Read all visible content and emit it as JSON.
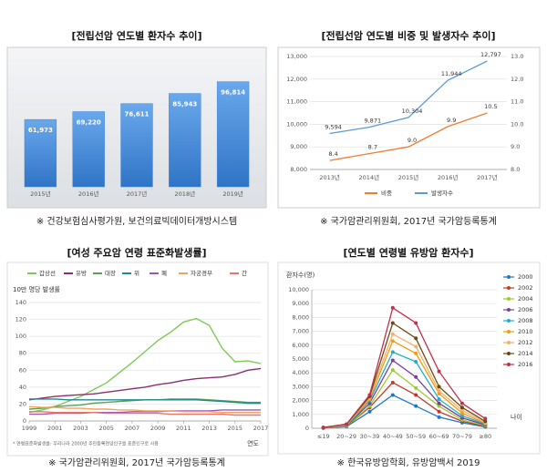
{
  "chart_data": [
    {
      "type": "bar",
      "title": "[전립선암 연도별 환자수 추이]",
      "categories": [
        "2015년",
        "2016년",
        "2017년",
        "2018년",
        "2019년"
      ],
      "values": [
        61973,
        69220,
        76611,
        85943,
        96814
      ],
      "value_labels": [
        "61,973",
        "69,220",
        "76,611",
        "85,943",
        "96,814"
      ],
      "color": "#3d85d8",
      "ylim": [
        0,
        120000
      ],
      "source": "※ 건강보험심사평가원, 보건의료빅데이터개방시스템"
    },
    {
      "type": "line",
      "title": "[전립선암 연도별 비중 및 발생자수 추이]",
      "categories": [
        "2013년",
        "2014년",
        "2015년",
        "2016년",
        "2017년"
      ],
      "series": [
        {
          "name": "비중",
          "color": "#ed7d31",
          "axis": "y2",
          "values": [
            8.4,
            8.7,
            9.0,
            9.9,
            10.5
          ],
          "value_labels": [
            "8.4",
            "8.7",
            "9.0",
            "9.9",
            "10.5"
          ]
        },
        {
          "name": "발생자수",
          "color": "#5b9bd5",
          "values": [
            9594,
            9871,
            10304,
            11944,
            12797
          ],
          "value_labels": [
            "9,594",
            "9,871",
            "10,304",
            "11,944",
            "12,797"
          ]
        }
      ],
      "ylim": [
        8000,
        13000
      ],
      "yticks": [
        {
          "value": 8000,
          "label": "8,000"
        },
        {
          "value": 9000,
          "label": "9,000"
        },
        {
          "value": 10000,
          "label": "10,000"
        },
        {
          "value": 11000,
          "label": "11,000"
        },
        {
          "value": 12000,
          "label": "12,000"
        },
        {
          "value": 13000,
          "label": "13,000"
        }
      ],
      "y2lim": [
        8,
        13
      ],
      "y2ticks": [
        {
          "value": 8,
          "label": "8.0"
        },
        {
          "value": 9,
          "label": "9.0"
        },
        {
          "value": 10,
          "label": "10.0"
        },
        {
          "value": 11,
          "label": "11.0"
        },
        {
          "value": 12,
          "label": "12.0"
        },
        {
          "value": 13,
          "label": "13.0"
        }
      ],
      "grid": true,
      "legend": "bottom",
      "source": "※ 국가암관리위원회, 2017년 국가암등록통계"
    },
    {
      "type": "line",
      "title": "[여성 주요암 연령 표준화발생률]",
      "y_label": "10만 명당 발생률",
      "x_label": "연도",
      "x": [
        1999,
        2000,
        2001,
        2002,
        2003,
        2004,
        2005,
        2006,
        2007,
        2008,
        2009,
        2010,
        2011,
        2012,
        2013,
        2014,
        2015,
        2016,
        2017
      ],
      "series": [
        {
          "name": "갑상선",
          "color": "#7fc95a",
          "values": [
            10,
            13,
            17,
            23,
            29,
            37,
            45,
            57,
            69,
            82,
            95,
            105,
            117,
            121,
            113,
            86,
            70,
            71,
            68
          ]
        },
        {
          "name": "유방",
          "color": "#8b2f6e",
          "values": [
            25,
            27,
            29,
            30,
            31,
            32,
            34,
            36,
            38,
            40,
            43,
            45,
            48,
            50,
            51,
            52,
            55,
            60,
            62
          ]
        },
        {
          "name": "대장",
          "color": "#5aa05a",
          "values": [
            14,
            15,
            17,
            18,
            19,
            21,
            22,
            23,
            24,
            25,
            25,
            26,
            26,
            26,
            25,
            24,
            23,
            22,
            22
          ]
        },
        {
          "name": "위",
          "color": "#1f8a8f",
          "values": [
            26,
            26,
            26,
            25,
            25,
            25,
            25,
            25,
            25,
            25,
            25,
            25,
            25,
            25,
            24,
            23,
            22,
            21,
            21
          ]
        },
        {
          "name": "폐",
          "color": "#9b59b6",
          "values": [
            8,
            8,
            9,
            9,
            9,
            10,
            10,
            10,
            11,
            11,
            11,
            12,
            12,
            12,
            12,
            13,
            13,
            13,
            13
          ]
        },
        {
          "name": "자궁경부",
          "color": "#f5a25d",
          "values": [
            17,
            16,
            16,
            15,
            15,
            14,
            14,
            13,
            13,
            12,
            12,
            12,
            11,
            11,
            11,
            10,
            10,
            10,
            10
          ]
        },
        {
          "name": "간",
          "color": "#e8746a",
          "values": [
            11,
            11,
            10,
            10,
            10,
            10,
            9,
            9,
            9,
            9,
            9,
            8,
            8,
            8,
            8,
            8,
            7,
            7,
            7
          ]
        }
      ],
      "xlim": [
        1999,
        2017
      ],
      "xticks": [
        1999,
        2001,
        2003,
        2005,
        2007,
        2009,
        2011,
        2013,
        2015,
        2017
      ],
      "ylim": [
        0,
        140
      ],
      "yticks": [
        0,
        20,
        40,
        60,
        80,
        100,
        120,
        140
      ],
      "grid": true,
      "legend": "top",
      "footnote": "* 연령표준화발생률: 우리나라 2000년 주민등록연앙인구를 표준인구로 사용",
      "source": "※ 국가암관리위원회, 2017년 국가암등록통계"
    },
    {
      "type": "line",
      "title": "[연도별 연령별 유방암 환자수]",
      "y_label": "환자수(명)",
      "x_label": "나이",
      "categories": [
        "≤19",
        "20~29",
        "30~39",
        "40~49",
        "50~59",
        "60~69",
        "70~79",
        "≥80"
      ],
      "series": [
        {
          "name": "2000",
          "color": "#1f77c8",
          "values": [
            20,
            120,
            1200,
            2400,
            1600,
            800,
            400,
            100
          ]
        },
        {
          "name": "2002",
          "color": "#c0392b",
          "values": [
            20,
            150,
            1500,
            3300,
            2400,
            1200,
            500,
            150
          ]
        },
        {
          "name": "2004",
          "color": "#9acd32",
          "values": [
            30,
            160,
            1600,
            4200,
            2900,
            1600,
            600,
            200
          ]
        },
        {
          "name": "2006",
          "color": "#7b3f9e",
          "values": [
            30,
            180,
            1800,
            4900,
            3700,
            1800,
            750,
            250
          ]
        },
        {
          "name": "2008",
          "color": "#1fb0c8",
          "values": [
            30,
            200,
            2000,
            5500,
            4800,
            2100,
            900,
            300
          ]
        },
        {
          "name": "2010",
          "color": "#f39c12",
          "values": [
            40,
            230,
            2100,
            6300,
            5400,
            2500,
            1100,
            350
          ]
        },
        {
          "name": "2012",
          "color": "#f5b06a",
          "values": [
            40,
            250,
            2200,
            6800,
            5900,
            2700,
            1300,
            400
          ]
        },
        {
          "name": "2014",
          "color": "#6b4a12",
          "values": [
            50,
            280,
            2300,
            7600,
            6500,
            3000,
            1500,
            500
          ]
        },
        {
          "name": "2016",
          "color": "#c0304a",
          "values": [
            50,
            300,
            2400,
            8700,
            7600,
            4100,
            1800,
            700
          ]
        }
      ],
      "ylim": [
        0,
        10000
      ],
      "yticks": [
        0,
        {
          "value": 1000,
          "label": "1,000"
        },
        {
          "value": 2000,
          "label": "2,000"
        },
        {
          "value": 3000,
          "label": "3,000"
        },
        {
          "value": 4000,
          "label": "4,000"
        },
        {
          "value": 5000,
          "label": "5,000"
        },
        {
          "value": 6000,
          "label": "6,000"
        },
        {
          "value": 7000,
          "label": "7,000"
        },
        {
          "value": 8000,
          "label": "8,000"
        },
        {
          "value": 9000,
          "label": "9,000"
        },
        {
          "value": 10000,
          "label": "10,000"
        }
      ],
      "grid": true,
      "legend": "right",
      "source": "※ 한국유방암학회, 유방암백서 2019"
    }
  ]
}
